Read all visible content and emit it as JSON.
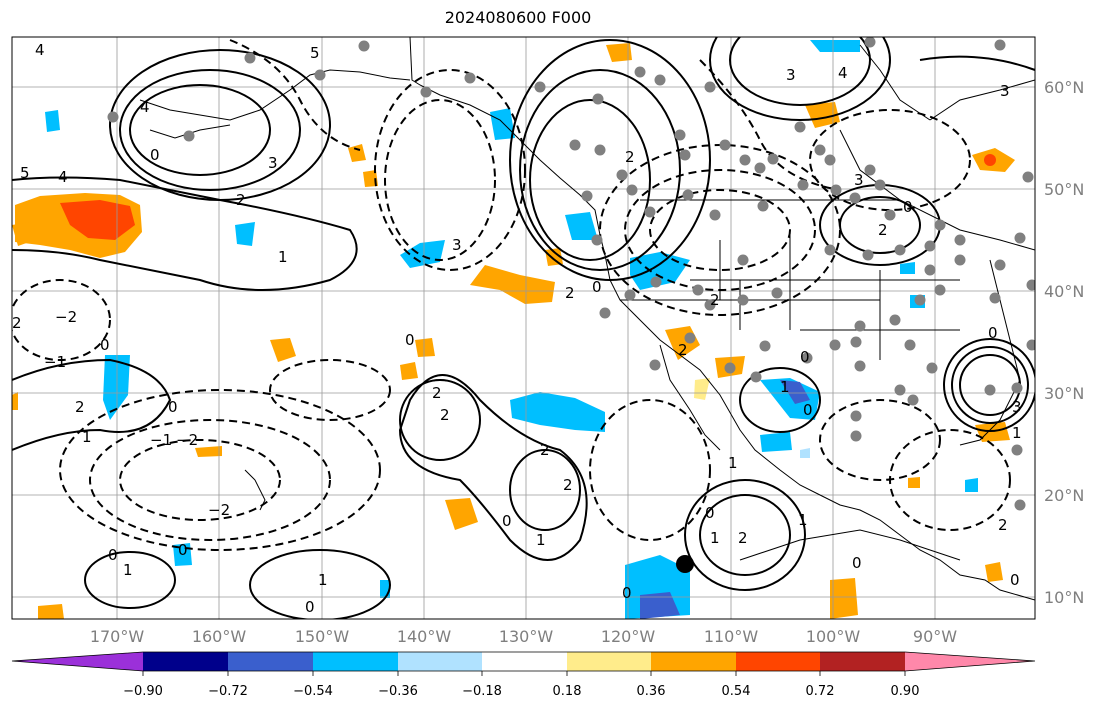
{
  "title": "2024080600 F000",
  "latitudes": [
    "60°N",
    "50°N",
    "40°N",
    "30°N",
    "20°N",
    "10°N"
  ],
  "longitudes": [
    "170°W",
    "160°W",
    "150°W",
    "140°W",
    "130°W",
    "120°W",
    "110°W",
    "100°W",
    "90°W"
  ],
  "colorbar": {
    "ticks": [
      "−0.90",
      "−0.72",
      "−0.54",
      "−0.36",
      "−0.18",
      "0.18",
      "0.36",
      "0.54",
      "0.72",
      "0.90"
    ],
    "colors": [
      "#9b30d9",
      "#00008b",
      "#3a5fcd",
      "#00bfff",
      "#b0e2ff",
      "#ffffff",
      "#ffec8b",
      "#ffa500",
      "#ff4500",
      "#b22222",
      "#ff88aa"
    ]
  },
  "contour_labels": [
    "0",
    "1",
    "2",
    "3",
    "4",
    "5",
    "−1",
    "−2"
  ]
}
